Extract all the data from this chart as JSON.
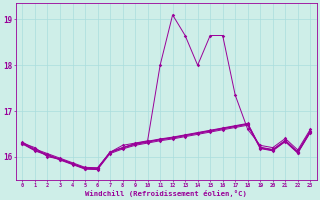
{
  "xlabel": "Windchill (Refroidissement éolien,°C)",
  "background_color": "#ceeee8",
  "line_color": "#990099",
  "grid_color": "#aadddd",
  "xlim": [
    -0.5,
    23.5
  ],
  "ylim": [
    15.5,
    19.35
  ],
  "yticks": [
    16,
    17,
    18,
    19
  ],
  "xticks": [
    0,
    1,
    2,
    3,
    4,
    5,
    6,
    7,
    8,
    9,
    10,
    11,
    12,
    13,
    14,
    15,
    16,
    17,
    18,
    19,
    20,
    21,
    22,
    23
  ],
  "series": [
    [
      16.3,
      16.2,
      16.0,
      15.95,
      15.85,
      15.75,
      15.75,
      16.1,
      16.25,
      16.3,
      16.35,
      18.0,
      19.1,
      18.65,
      18.0,
      18.65,
      18.65,
      17.35,
      16.6,
      16.25,
      16.2,
      16.4,
      16.15,
      16.6
    ],
    [
      16.3,
      16.15,
      16.05,
      15.95,
      15.85,
      15.75,
      15.75,
      16.1,
      16.2,
      16.28,
      16.33,
      16.38,
      16.42,
      16.47,
      16.52,
      16.57,
      16.62,
      16.67,
      16.72,
      16.2,
      16.15,
      16.35,
      16.1,
      16.55
    ],
    [
      16.28,
      16.13,
      16.03,
      15.93,
      15.83,
      15.73,
      15.72,
      16.07,
      16.17,
      16.25,
      16.3,
      16.35,
      16.39,
      16.44,
      16.49,
      16.54,
      16.59,
      16.64,
      16.69,
      16.18,
      16.13,
      16.33,
      16.08,
      16.53
    ],
    [
      16.32,
      16.17,
      16.07,
      15.97,
      15.87,
      15.77,
      15.76,
      16.1,
      16.2,
      16.29,
      16.34,
      16.39,
      16.43,
      16.48,
      16.53,
      16.58,
      16.63,
      16.68,
      16.73,
      16.21,
      16.16,
      16.36,
      16.11,
      16.57
    ],
    [
      16.29,
      16.14,
      16.04,
      15.94,
      15.84,
      15.74,
      15.73,
      16.09,
      16.19,
      16.27,
      16.32,
      16.37,
      16.41,
      16.46,
      16.51,
      16.56,
      16.61,
      16.66,
      16.71,
      16.19,
      16.14,
      16.34,
      16.09,
      16.54
    ]
  ]
}
